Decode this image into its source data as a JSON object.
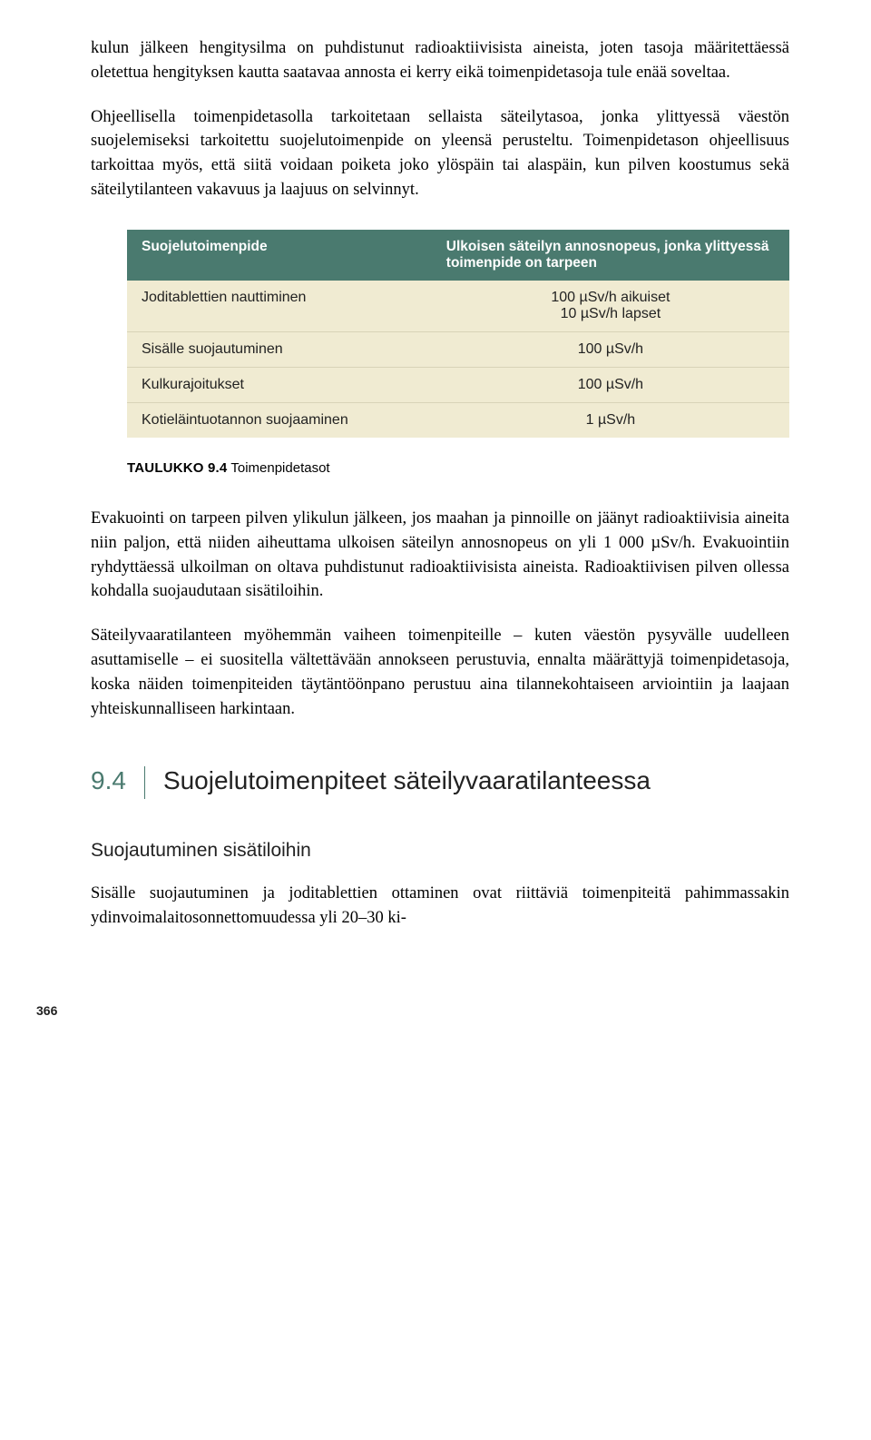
{
  "paragraphs": {
    "p1": "kulun jälkeen hengitysilma on puhdistunut radioaktiivisista aineista, joten tasoja määritettäessä oletettua hengityksen kautta saatavaa annosta ei kerry eikä toimenpidetasoja tule enää soveltaa.",
    "p2": "Ohjeellisella toimenpidetasolla tarkoitetaan sellaista säteilytasoa, jonka ylittyessä väestön suojelemiseksi tarkoitettu suojelutoimenpide on yleensä perusteltu. Toimenpidetason ohjeellisuus tarkoittaa myös, että siitä voidaan poiketa joko ylöspäin tai alaspäin, kun pilven koostumus sekä säteilytilanteen vakavuus ja laajuus on selvinnyt.",
    "p3": "Evakuointi on tarpeen pilven ylikulun jälkeen, jos maahan ja pinnoille on jäänyt radioaktiivisia aineita niin paljon, että niiden aiheuttama ulkoisen säteilyn annosnopeus on yli 1 000 µSv/h. Evakuointiin ryhdyttäessä ulkoilman on oltava puhdistunut radioaktiivisista aineista. Radioaktiivisen pilven ollessa kohdalla suojaudutaan sisätiloihin.",
    "p4": "Säteilyvaaratilanteen myöhemmän vaiheen toimenpiteille – kuten väestön pysyvälle uudelleen asuttamiselle – ei suositella vältettävään annokseen perustuvia, ennalta määrättyjä toimenpidetasoja, koska näiden toimenpiteiden täytäntöönpano perustuu aina tilannekohtaiseen arviointiin ja laajaan yhteiskunnalliseen harkintaan.",
    "p5": "Sisälle suojautuminen ja joditablettien ottaminen ovat riittäviä toimenpiteitä pahimmassakin ydinvoimalaitosonnettomuudessa yli 20–30 ki-"
  },
  "table": {
    "header": {
      "col1": "Suojelutoimenpide",
      "col2": "Ulkoisen säteilyn annosnopeus, jonka ylittyessä toimenpide on tarpeen"
    },
    "rows": [
      {
        "label": "Joditablettien nauttiminen",
        "values": [
          "100 µSv/h aikuiset",
          "10 µSv/h lapset"
        ]
      },
      {
        "label": "Sisälle suojautuminen",
        "values": [
          "100 µSv/h"
        ]
      },
      {
        "label": "Kulkurajoitukset",
        "values": [
          "100 µSv/h"
        ]
      },
      {
        "label": "Kotieläintuotannon suojaaminen",
        "values": [
          "1 µSv/h"
        ]
      }
    ],
    "caption_num": "TAULUKKO 9.4",
    "caption_text": " Toimenpidetasot"
  },
  "section": {
    "number": "9.4",
    "title": "Suojelutoimenpiteet säteilyvaaratilanteessa"
  },
  "subsection": {
    "title": "Suojautuminen sisätiloihin"
  },
  "page_number": "366",
  "colors": {
    "header_bg": "#4a7a6f",
    "header_fg": "#ffffff",
    "row_bg": "#f0ebd2",
    "row_border": "#d8d3b8",
    "sec_accent": "#4a7a6f",
    "body_text": "#000000",
    "page_bg": "#ffffff"
  },
  "typography": {
    "body_font": "Georgia, serif",
    "body_size_pt": 14,
    "ui_font": "Arial, sans-serif",
    "table_header_size_pt": 11.5,
    "table_cell_size_pt": 12,
    "section_title_size_pt": 21,
    "subhead_size_pt": 16,
    "caption_size_pt": 11
  }
}
